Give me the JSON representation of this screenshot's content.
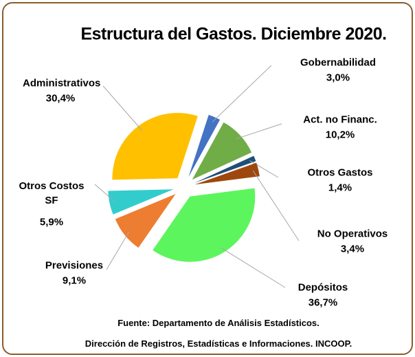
{
  "chart_data": {
    "type": "pie",
    "title": "Estructura del Gastos. Diciembre 2020.",
    "categories": [
      "Gobernabilidad",
      "Act. no Financ.",
      "Otros Gastos",
      "No Operativos",
      "Depósitos",
      "Previsiones",
      "Otros Costos SF",
      "Administrativos"
    ],
    "values": [
      3.0,
      10.2,
      1.4,
      3.4,
      36.7,
      9.1,
      5.9,
      30.4
    ],
    "value_labels": [
      "3,0%",
      "10,2%",
      "1,4%",
      "3,4%",
      "36,7%",
      "9,1%",
      "5,9%",
      "30,4%"
    ],
    "colors": [
      "#4472c4",
      "#70ad47",
      "#1f4e79",
      "#9e480e",
      "#5df55d",
      "#ed7d31",
      "#33cccc",
      "#ffc000"
    ],
    "source": [
      "Fuente: Departamento de Análisis Estadísticos.",
      "Dirección de Registros, Estadísticas e Informaciones. INCOOP."
    ]
  }
}
